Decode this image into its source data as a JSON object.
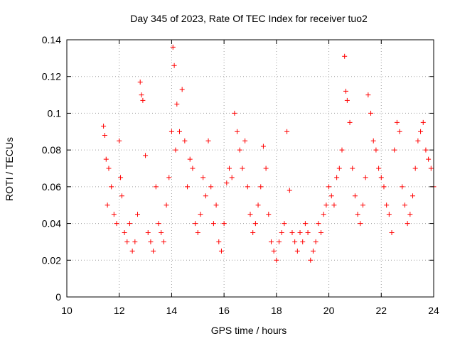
{
  "chart_data": {
    "type": "scatter",
    "title": "Day 345 of 2023, Rate Of TEC Index for receiver tuo2",
    "xlabel": "GPS time / hours",
    "ylabel": "ROTI / TECUs",
    "xlim": [
      10,
      24
    ],
    "ylim": [
      0,
      0.14
    ],
    "x_ticks": [
      "10",
      "12",
      "14",
      "16",
      "18",
      "20",
      "22",
      "24"
    ],
    "y_ticks": [
      "0",
      "0.02",
      "0.04",
      "0.06",
      "0.08",
      "0.1",
      "0.12",
      "0.14"
    ],
    "grid": true,
    "marker": "+",
    "color": "#ff0000",
    "series": [
      {
        "x": [
          11.4,
          11.45,
          11.5,
          11.55,
          11.6,
          11.7,
          11.8,
          11.9,
          12.0,
          12.05,
          12.1,
          12.2,
          12.3,
          12.4,
          12.5,
          12.6,
          12.7,
          12.8,
          12.85,
          12.9,
          13.0,
          13.1,
          13.2,
          13.3,
          13.4,
          13.5,
          13.6,
          13.7,
          13.8,
          13.9,
          14.0,
          14.05,
          14.1,
          14.15,
          14.2,
          14.3,
          14.4,
          14.5,
          14.6,
          14.7,
          14.8,
          14.9,
          15.0,
          15.1,
          15.2,
          15.3,
          15.4,
          15.5,
          15.6,
          15.7,
          15.8,
          15.9,
          16.0,
          16.1,
          16.2,
          16.3,
          16.4,
          16.5,
          16.6,
          16.7,
          16.8,
          16.9,
          17.0,
          17.1,
          17.2,
          17.3,
          17.4,
          17.5,
          17.6,
          17.7,
          17.8,
          17.9,
          18.0,
          18.1,
          18.2,
          18.3,
          18.4,
          18.5,
          18.6,
          18.7,
          18.8,
          18.9,
          19.0,
          19.1,
          19.2,
          19.3,
          19.4,
          19.5,
          19.6,
          19.7,
          19.8,
          19.9,
          20.0,
          20.1,
          20.2,
          20.3,
          20.4,
          20.5,
          20.6,
          20.65,
          20.7,
          20.8,
          20.9,
          21.0,
          21.1,
          21.2,
          21.3,
          21.4,
          21.5,
          21.6,
          21.7,
          21.8,
          21.9,
          22.0,
          22.1,
          22.2,
          22.3,
          22.4,
          22.5,
          22.6,
          22.7,
          22.8,
          22.9,
          23.0,
          23.1,
          23.2,
          23.3,
          23.4,
          23.5,
          23.6,
          23.7,
          23.8,
          23.9,
          24.0
        ],
        "y": [
          0.093,
          0.088,
          0.075,
          0.05,
          0.07,
          0.06,
          0.045,
          0.04,
          0.085,
          0.065,
          0.055,
          0.035,
          0.03,
          0.04,
          0.025,
          0.03,
          0.045,
          0.117,
          0.11,
          0.107,
          0.077,
          0.035,
          0.03,
          0.025,
          0.06,
          0.04,
          0.035,
          0.03,
          0.05,
          0.065,
          0.09,
          0.136,
          0.126,
          0.08,
          0.105,
          0.09,
          0.113,
          0.085,
          0.06,
          0.075,
          0.07,
          0.04,
          0.035,
          0.045,
          0.065,
          0.055,
          0.085,
          0.06,
          0.04,
          0.05,
          0.03,
          0.025,
          0.04,
          0.062,
          0.07,
          0.065,
          0.1,
          0.09,
          0.08,
          0.07,
          0.085,
          0.06,
          0.045,
          0.035,
          0.04,
          0.05,
          0.06,
          0.082,
          0.07,
          0.045,
          0.03,
          0.025,
          0.02,
          0.03,
          0.035,
          0.04,
          0.09,
          0.058,
          0.035,
          0.03,
          0.025,
          0.035,
          0.03,
          0.04,
          0.035,
          0.02,
          0.025,
          0.03,
          0.04,
          0.035,
          0.045,
          0.05,
          0.06,
          0.055,
          0.05,
          0.065,
          0.07,
          0.08,
          0.131,
          0.112,
          0.107,
          0.095,
          0.07,
          0.055,
          0.045,
          0.04,
          0.05,
          0.065,
          0.11,
          0.1,
          0.085,
          0.08,
          0.07,
          0.065,
          0.06,
          0.05,
          0.045,
          0.035,
          0.08,
          0.095,
          0.09,
          0.06,
          0.05,
          0.04,
          0.045,
          0.055,
          0.07,
          0.085,
          0.09,
          0.095,
          0.08,
          0.075,
          0.07,
          0.06
        ]
      }
    ]
  }
}
